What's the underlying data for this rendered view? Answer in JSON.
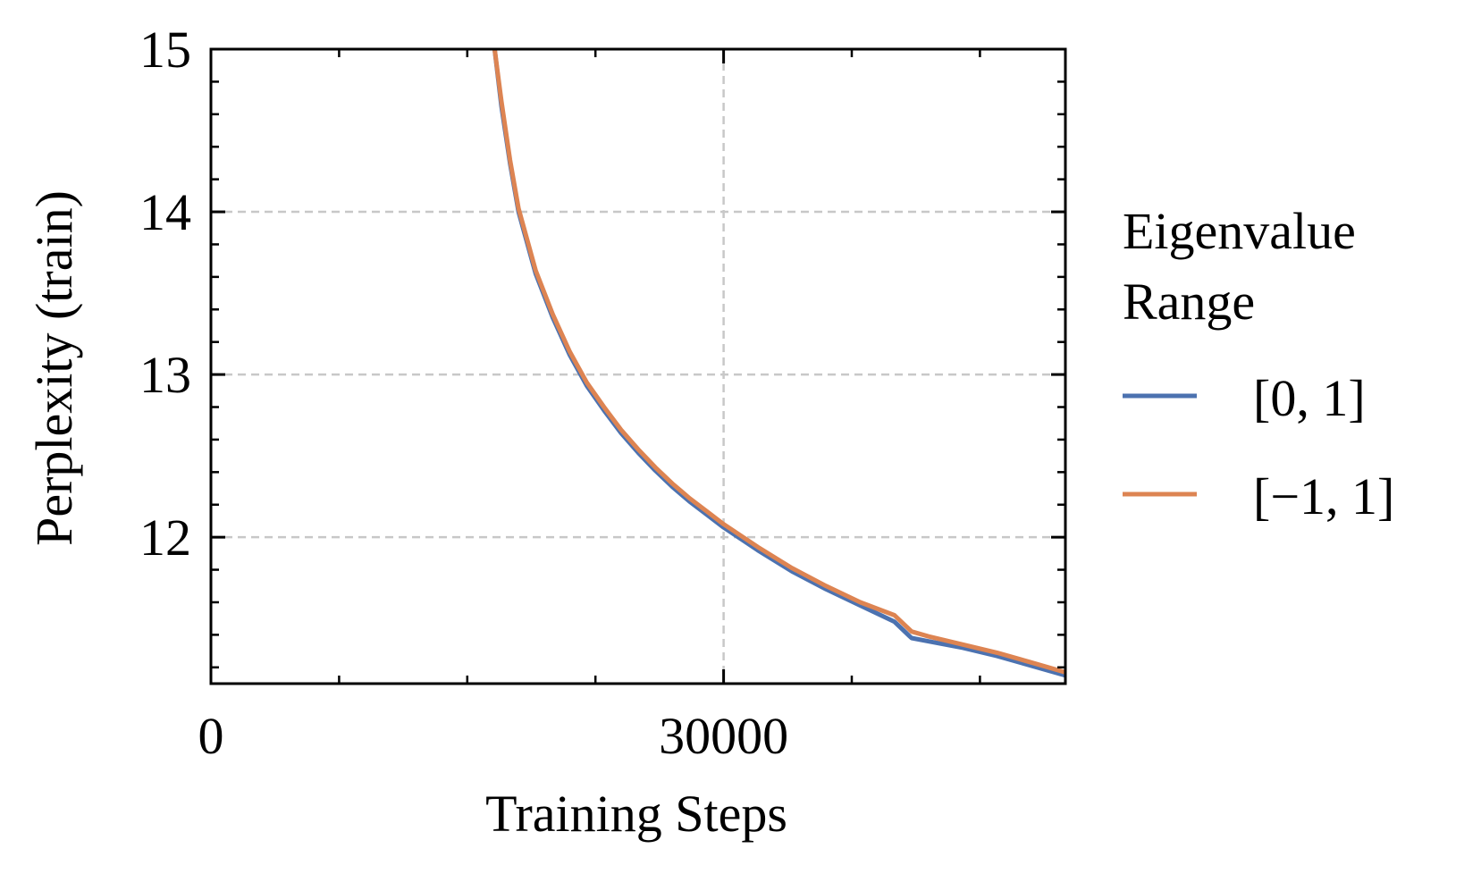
{
  "chart_data": {
    "type": "line",
    "title": "",
    "xlabel": "Training Steps",
    "ylabel": "Perplexity (train)",
    "xlim": [
      0,
      50000
    ],
    "ylim": [
      11.1,
      15
    ],
    "x_ticks": [
      0,
      30000
    ],
    "x_tick_labels": [
      "0",
      "30000"
    ],
    "x_minor_ticks": [
      7500,
      15000,
      22500,
      37500,
      45000
    ],
    "y_ticks": [
      12,
      13,
      14,
      15
    ],
    "y_tick_labels": [
      "12",
      "13",
      "14",
      "15"
    ],
    "y_minor_step": 0.2,
    "grid": true,
    "legend": {
      "title_lines": [
        "Eigenvalue",
        "Range"
      ],
      "position": "outside-right"
    },
    "series": [
      {
        "name": "[0, 1]",
        "color": "#4c72b0",
        "x": [
          16600,
          17000,
          17500,
          18000,
          19000,
          20000,
          21000,
          22000,
          23000,
          24000,
          25000,
          26000,
          27000,
          28000,
          29000,
          30000,
          32000,
          34000,
          36000,
          38000,
          40000,
          41000,
          42000,
          44000,
          46000,
          48000,
          50000
        ],
        "y": [
          15.0,
          14.65,
          14.3,
          14.0,
          13.62,
          13.35,
          13.12,
          12.93,
          12.78,
          12.64,
          12.52,
          12.41,
          12.31,
          12.22,
          12.14,
          12.06,
          11.92,
          11.79,
          11.68,
          11.58,
          11.48,
          11.38,
          11.36,
          11.32,
          11.27,
          11.21,
          11.15
        ]
      },
      {
        "name": "[−1, 1]",
        "color": "#dd8452",
        "x": [
          16600,
          17000,
          17500,
          18000,
          19000,
          20000,
          21000,
          22000,
          23000,
          24000,
          25000,
          26000,
          27000,
          28000,
          29000,
          30000,
          32000,
          34000,
          36000,
          38000,
          40000,
          41000,
          42000,
          44000,
          46000,
          48000,
          50000
        ],
        "y": [
          15.0,
          14.68,
          14.32,
          14.02,
          13.64,
          13.37,
          13.14,
          12.95,
          12.8,
          12.66,
          12.54,
          12.43,
          12.33,
          12.24,
          12.16,
          12.08,
          11.94,
          11.81,
          11.7,
          11.6,
          11.52,
          11.42,
          11.39,
          11.34,
          11.29,
          11.23,
          11.17
        ]
      }
    ]
  }
}
